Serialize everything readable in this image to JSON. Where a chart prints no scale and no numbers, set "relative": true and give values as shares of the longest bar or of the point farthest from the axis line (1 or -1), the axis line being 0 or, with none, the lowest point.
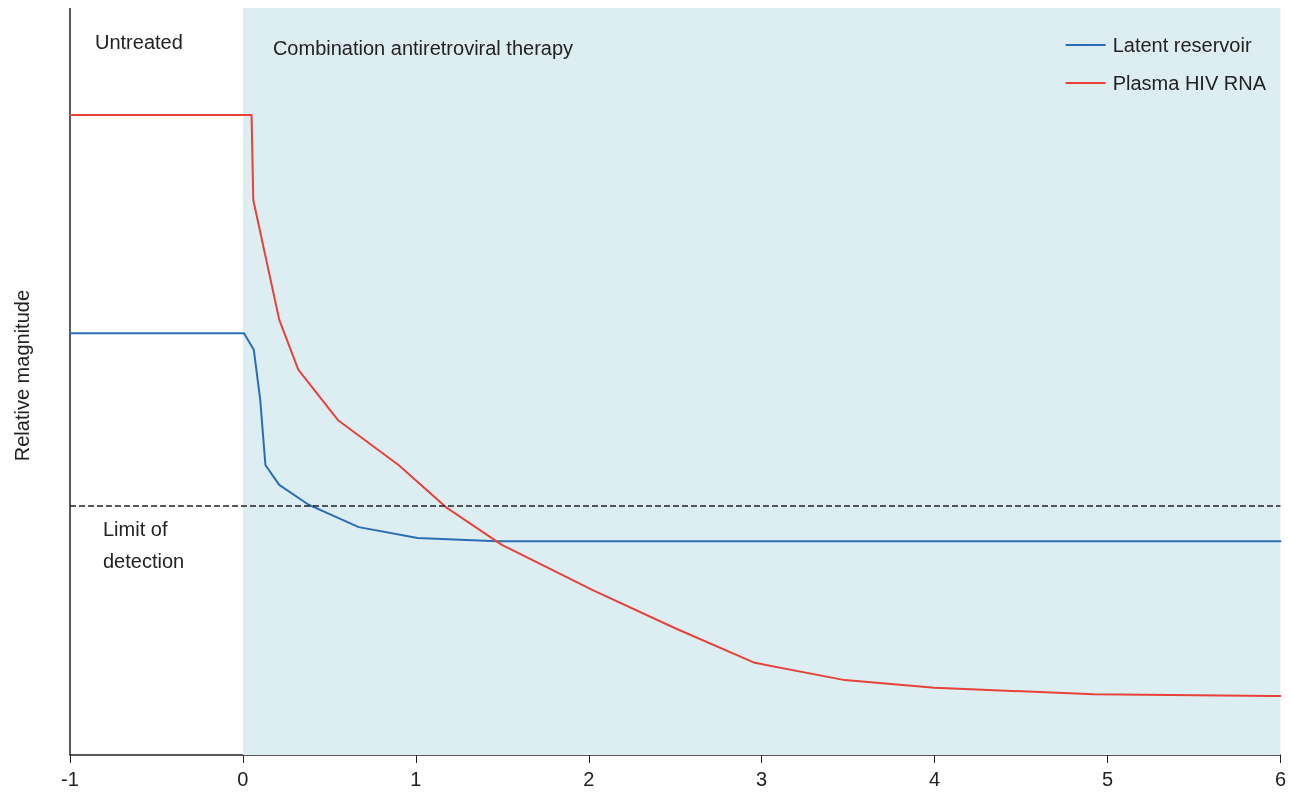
{
  "chart_data": {
    "type": "line",
    "ylabel": "Relative magnitude",
    "relative": true,
    "xlim": [
      -1,
      6
    ],
    "xticks": [
      -1,
      0,
      1,
      2,
      3,
      4,
      5,
      6
    ],
    "tick_labels": "x",
    "grid": false,
    "legend": "top right",
    "marker": "none",
    "line_style": "solid",
    "series": [
      {
        "name": "Latent reservoir",
        "color": "#2a6db5",
        "x": [
          -1,
          0.006,
          0.063,
          0.1,
          0.13,
          0.21,
          0.38,
          0.67,
          1.01,
          1.47,
          6
        ],
        "values": [
          0.659,
          0.659,
          0.633,
          0.555,
          0.453,
          0.422,
          0.391,
          0.356,
          0.339,
          0.334,
          0.334
        ]
      },
      {
        "name": "Plasma HIV RNA",
        "color": "#e8413a",
        "x": [
          -1,
          0.05,
          0.06,
          0.21,
          0.32,
          0.55,
          0.9,
          1.18,
          1.5,
          2.02,
          2.5,
          2.96,
          3.48,
          4.0,
          4.92,
          6
        ],
        "values": [
          1,
          1,
          0.867,
          0.68,
          0.602,
          0.523,
          0.453,
          0.386,
          0.328,
          0.258,
          0.198,
          0.144,
          0.117,
          0.105,
          0.095,
          0.092
        ]
      }
    ],
    "bands": [
      {
        "axis": "x",
        "from": 0,
        "to": 6,
        "label": "Combination antiretroviral therapy",
        "color": "#ddeef3"
      }
    ],
    "ref_lines": [
      {
        "axis": "y",
        "value": 0.3875,
        "label": "Limit of\ndetection",
        "line_style": "dashed",
        "color": "#222222"
      }
    ],
    "annotations": [
      "Untreated"
    ]
  }
}
